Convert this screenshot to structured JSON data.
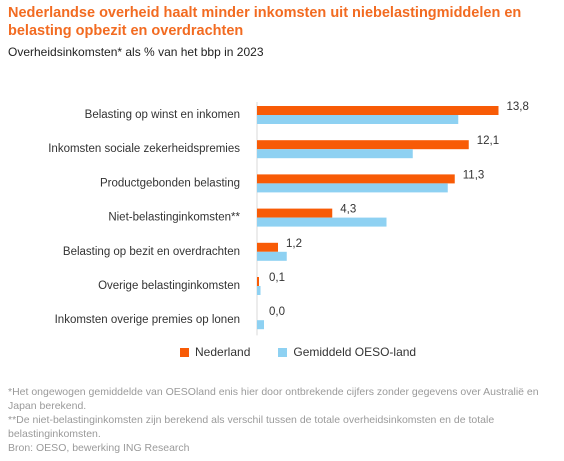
{
  "title": "Nederlandse overheid haalt minder inkomsten uit niebelastingmiddelen en belasting opbezit en overdrachten",
  "subtitle": "Overheidsinkomsten* als % van het bbp in 2023",
  "colors": {
    "nederland": "#f85b06",
    "oeso": "#8ed1f2"
  },
  "chart_data": {
    "type": "bar",
    "orientation": "horizontal",
    "categories": [
      "Belasting op winst en inkomen",
      "Inkomsten sociale zekerheidspremies",
      "Productgebonden belasting",
      "Niet-belastinginkomsten**",
      "Belasting op bezit en overdrachten",
      "Overige belastinginkomsten",
      "Inkomsten overige premies op lonen"
    ],
    "series": [
      {
        "name": "Nederland",
        "values": [
          13.8,
          12.1,
          11.3,
          4.3,
          1.2,
          0.1,
          0.0
        ]
      },
      {
        "name": "Gemiddeld OESO-land",
        "values": [
          11.5,
          8.9,
          10.9,
          7.4,
          1.7,
          0.2,
          0.4
        ]
      }
    ],
    "value_labels": [
      "13,8",
      "12,1",
      "11,3",
      "4,3",
      "1,2",
      "0,1",
      "0,0"
    ],
    "xlim": [
      0,
      16
    ],
    "grid": false,
    "legend_position": "bottom"
  },
  "legend": {
    "nederland": "Nederland",
    "oeso": "Gemiddeld OESO-land"
  },
  "notes": [
    "*Het ongewogen gemiddelde van OESOland enis hier door ontbrekende cijfers zonder gegevens over Australië en Japan berekend.",
    "**De niet-belastinginkomsten zijn berekend als verschil tussen de totale overheidsinkomsten en de totale belastinginkomsten.",
    "Bron: OESO, bewerking ING Research"
  ]
}
